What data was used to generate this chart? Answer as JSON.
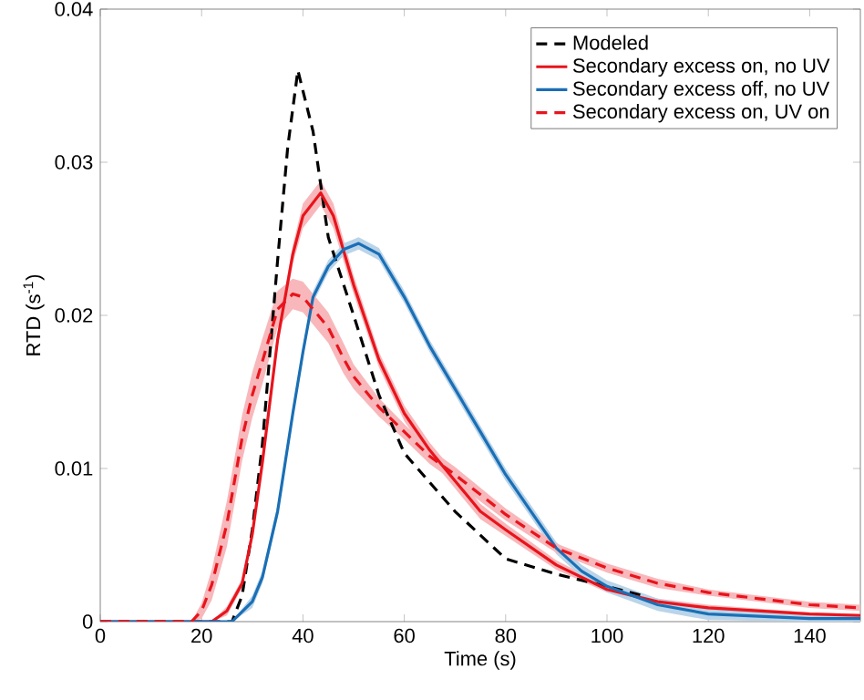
{
  "chart_data": {
    "type": "line",
    "xlabel": "Time (s)",
    "ylabel": "RTD (s$^{-1}$)",
    "xlim": [
      0,
      150
    ],
    "ylim": [
      0,
      0.04
    ],
    "xticks": [
      0,
      20,
      40,
      60,
      80,
      100,
      120,
      140
    ],
    "yticks": [
      0,
      0.01,
      0.02,
      0.03,
      0.04
    ],
    "legend": "top right",
    "series": [
      {
        "name": "Modeled",
        "color": "#000000",
        "line_style": "dashed",
        "x": [
          0,
          26,
          28,
          30,
          32,
          35,
          37,
          39,
          42,
          45,
          50,
          55,
          60,
          70,
          80,
          90,
          100,
          107
        ],
        "values": [
          0,
          0,
          0.0017,
          0.006,
          0.0116,
          0.0236,
          0.031,
          0.036,
          0.032,
          0.0251,
          0.02,
          0.0148,
          0.011,
          0.0072,
          0.0041,
          0.0031,
          0.0023,
          0.0017
        ]
      },
      {
        "name": "Secondary excess on, no UV",
        "color": "#e8141c",
        "line_style": "solid",
        "x": [
          0,
          22,
          25,
          28,
          30,
          32,
          35,
          38,
          40,
          43.5,
          46,
          50,
          55,
          60,
          65,
          70,
          75,
          80,
          90,
          100,
          110,
          120,
          140,
          150
        ],
        "values": [
          0,
          0,
          0.0007,
          0.0025,
          0.0057,
          0.0104,
          0.0184,
          0.024,
          0.0265,
          0.028,
          0.0265,
          0.022,
          0.0171,
          0.0136,
          0.0112,
          0.0092,
          0.0072,
          0.006,
          0.0037,
          0.0021,
          0.0013,
          0.0009,
          0.0005,
          0.0004
        ],
        "lower": [
          0,
          0,
          0.0004,
          0.0022,
          0.0053,
          0.01,
          0.0179,
          0.0234,
          0.0257,
          0.0272,
          0.0257,
          0.0214,
          0.0166,
          0.0131,
          0.0107,
          0.0087,
          0.0067,
          0.0056,
          0.0034,
          0.0019,
          0.0011,
          0.0007,
          0.0004,
          0.0003
        ],
        "upper": [
          0,
          0,
          0.001,
          0.0028,
          0.0061,
          0.0108,
          0.0189,
          0.0246,
          0.0273,
          0.0288,
          0.0273,
          0.0226,
          0.0176,
          0.0141,
          0.0117,
          0.0097,
          0.0077,
          0.0064,
          0.004,
          0.0023,
          0.0015,
          0.0011,
          0.0006,
          0.0005
        ]
      },
      {
        "name": "Secondary excess off, no UV",
        "color": "#1a6fb5",
        "line_style": "solid",
        "x": [
          0,
          26,
          30,
          32,
          35,
          38,
          40,
          42,
          45,
          48,
          51,
          55,
          60,
          65,
          70,
          75,
          80,
          85,
          90,
          95,
          100,
          110,
          120,
          140,
          150
        ],
        "values": [
          0,
          0,
          0.0013,
          0.0029,
          0.0072,
          0.0136,
          0.0176,
          0.0212,
          0.0232,
          0.0243,
          0.0247,
          0.024,
          0.0212,
          0.018,
          0.0152,
          0.0124,
          0.0096,
          0.0072,
          0.0048,
          0.0033,
          0.0023,
          0.0011,
          0.0005,
          0.0002,
          0.0002
        ],
        "lower": [
          0,
          0,
          0.0009,
          0.0025,
          0.0068,
          0.0132,
          0.0172,
          0.0208,
          0.0228,
          0.0239,
          0.0243,
          0.0236,
          0.0208,
          0.0176,
          0.0148,
          0.012,
          0.0092,
          0.0068,
          0.0044,
          0.0029,
          0.0019,
          0.0007,
          0.0001,
          0,
          0
        ],
        "upper": [
          0,
          0,
          0.0017,
          0.0033,
          0.0076,
          0.014,
          0.018,
          0.0216,
          0.0236,
          0.0247,
          0.0251,
          0.0244,
          0.0216,
          0.0184,
          0.0156,
          0.0128,
          0.01,
          0.0076,
          0.0052,
          0.0037,
          0.0027,
          0.0015,
          0.0009,
          0.0004,
          0.0004
        ]
      },
      {
        "name": "Secondary excess on, UV on",
        "color": "#e8141c",
        "line_style": "dashed",
        "x": [
          0,
          18,
          20,
          22,
          25,
          28,
          30,
          32,
          35,
          38,
          40,
          42,
          45,
          48,
          50,
          55,
          60,
          65,
          70,
          80,
          90,
          100,
          110,
          120,
          130,
          140,
          150
        ],
        "values": [
          0,
          0,
          0.0007,
          0.0024,
          0.0064,
          0.012,
          0.0148,
          0.017,
          0.0204,
          0.0214,
          0.0212,
          0.0204,
          0.0192,
          0.0172,
          0.016,
          0.014,
          0.0124,
          0.0108,
          0.0096,
          0.007,
          0.0048,
          0.0035,
          0.0025,
          0.0019,
          0.0015,
          0.0011,
          0.0009
        ],
        "lower": [
          0,
          0,
          0.0002,
          0.0014,
          0.0049,
          0.0105,
          0.0133,
          0.0155,
          0.0192,
          0.0204,
          0.0202,
          0.0194,
          0.0182,
          0.0162,
          0.0152,
          0.0134,
          0.0119,
          0.0103,
          0.0091,
          0.0066,
          0.0045,
          0.0032,
          0.0022,
          0.0017,
          0.0013,
          0.0009,
          0.0007
        ],
        "upper": [
          0,
          0,
          0.0012,
          0.0034,
          0.0079,
          0.0135,
          0.0163,
          0.0185,
          0.0216,
          0.0224,
          0.0222,
          0.0214,
          0.0202,
          0.0182,
          0.0168,
          0.0146,
          0.0129,
          0.0113,
          0.0101,
          0.0074,
          0.0051,
          0.0038,
          0.0028,
          0.0021,
          0.0017,
          0.0013,
          0.0011
        ]
      }
    ]
  }
}
